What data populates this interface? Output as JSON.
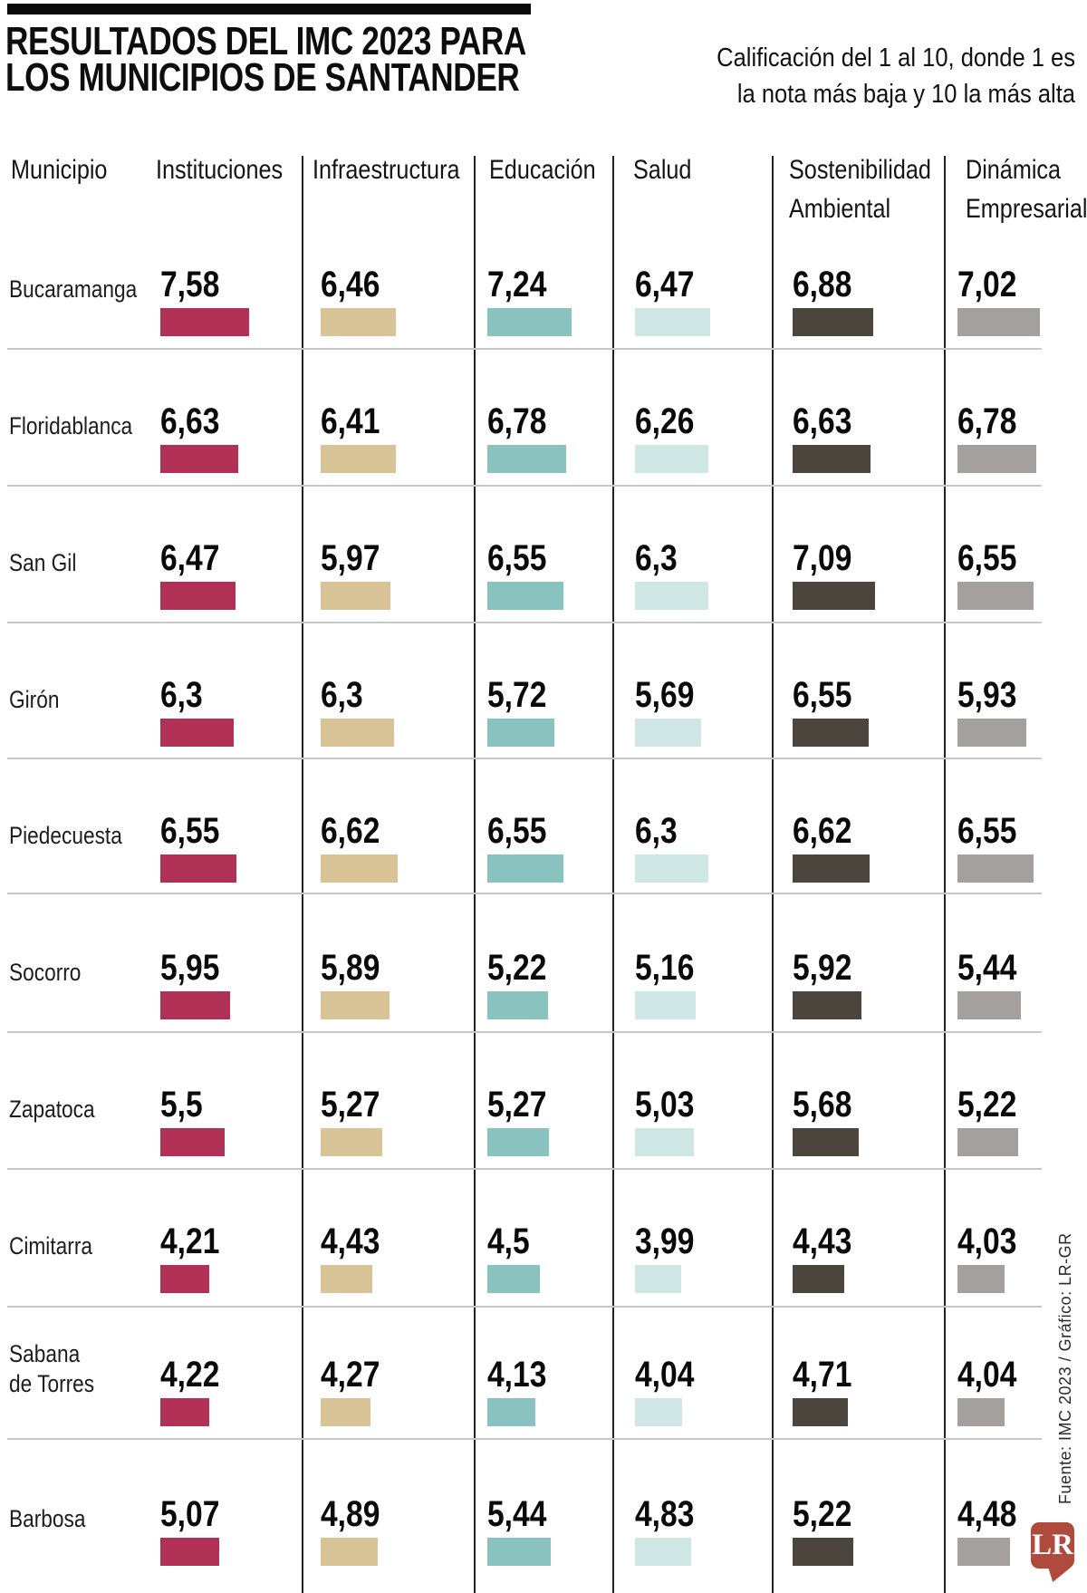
{
  "header": {
    "title_line1": "RESULTADOS DEL IMC 2023 PARA",
    "title_line2": "LOS MUNICIPIOS DE SANTANDER",
    "subtitle_line1": "Calificación del 1 al 10, donde 1 es",
    "subtitle_line2": "la nota más baja y 10 la más alta"
  },
  "footer": {
    "source_text": "Fuente: IMC 2023 / Gráfico: LR-GR",
    "logo_text": "LR",
    "logo_color": "#b04a3c"
  },
  "chart_data": {
    "type": "bar",
    "title": "RESULTADOS DEL IMC 2023 PARA LOS MUNICIPIOS DE SANTANDER",
    "note": "Calificación del 1 al 10, donde 1 es la nota más baja y 10 la más alta",
    "row_header": "Municipio",
    "value_range": [
      1,
      10
    ],
    "grid": false,
    "legend_position": "column-headers",
    "categories": [
      "Bucaramanga",
      "Floridablanca",
      "San Gil",
      "Girón",
      "Piedecuesta",
      "Socorro",
      "Zapatoca",
      "Cimitarra",
      "Sabana\nde Torres",
      "Barbosa"
    ],
    "series": [
      {
        "name": "Instituciones",
        "color": "#b13056",
        "values": [
          7.58,
          6.63,
          6.47,
          6.3,
          6.55,
          5.95,
          5.5,
          4.21,
          4.22,
          5.07
        ],
        "labels": [
          "7,58",
          "6,63",
          "6,47",
          "6,3",
          "6,55",
          "5,95",
          "5,5",
          "4,21",
          "4,22",
          "5,07"
        ]
      },
      {
        "name": "Infraestructura",
        "color": "#d8c396",
        "values": [
          6.46,
          6.41,
          5.97,
          6.3,
          6.62,
          5.89,
          5.27,
          4.43,
          4.27,
          4.89
        ],
        "labels": [
          "6,46",
          "6,41",
          "5,97",
          "6,3",
          "6,62",
          "5,89",
          "5,27",
          "4,43",
          "4,27",
          "4,89"
        ]
      },
      {
        "name": "Educación",
        "color": "#8ac2c0",
        "values": [
          7.24,
          6.78,
          6.55,
          5.72,
          6.55,
          5.22,
          5.27,
          4.5,
          4.13,
          5.44
        ],
        "labels": [
          "7,24",
          "6,78",
          "6,55",
          "5,72",
          "6,55",
          "5,22",
          "5,27",
          "4,5",
          "4,13",
          "5,44"
        ]
      },
      {
        "name": "Salud",
        "color": "#cee6e4",
        "values": [
          6.47,
          6.26,
          6.3,
          5.69,
          6.3,
          5.16,
          5.03,
          3.99,
          4.04,
          4.83
        ],
        "labels": [
          "6,47",
          "6,26",
          "6,3",
          "5,69",
          "6,3",
          "5,16",
          "5,03",
          "3,99",
          "4,04",
          "4,83"
        ]
      },
      {
        "name": "Sostenibilidad Ambiental",
        "color": "#4b453e",
        "values": [
          6.88,
          6.63,
          7.09,
          6.55,
          6.62,
          5.92,
          5.68,
          4.43,
          4.71,
          5.22
        ],
        "labels": [
          "6,88",
          "6,63",
          "7,09",
          "6,55",
          "6,62",
          "5,92",
          "5,68",
          "4,43",
          "4,71",
          "5,22"
        ]
      },
      {
        "name": "Dinámica Empresarial",
        "color": "#a4a09d",
        "values": [
          7.02,
          6.78,
          6.55,
          5.93,
          6.55,
          5.44,
          5.22,
          4.03,
          4.04,
          4.48
        ],
        "labels": [
          "7,02",
          "6,78",
          "6,55",
          "5,93",
          "6,55",
          "5,44",
          "5,22",
          "4,03",
          "4,04",
          "4,48"
        ]
      }
    ]
  }
}
